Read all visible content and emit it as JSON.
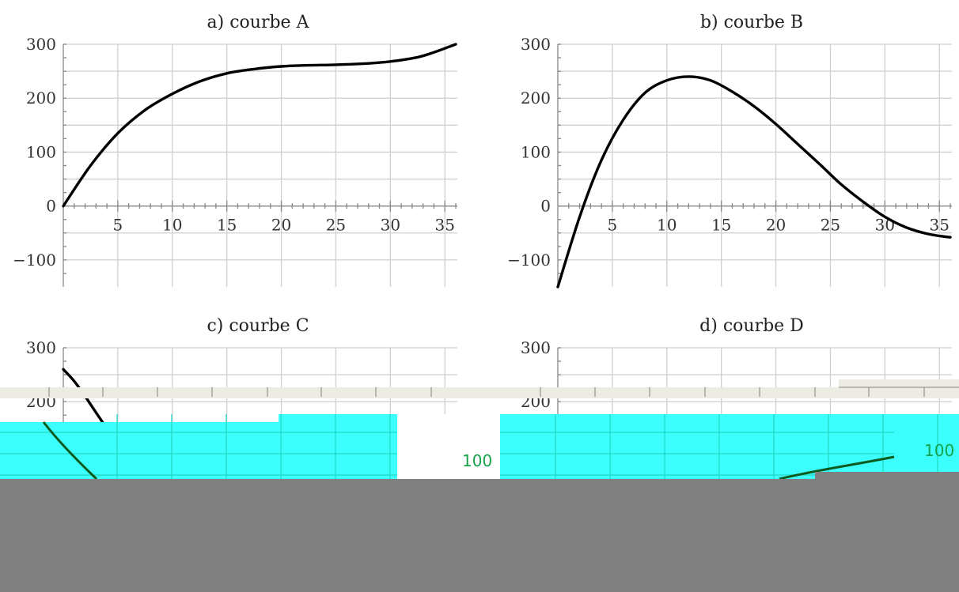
{
  "colors": {
    "curve": "#000000",
    "grid": "#cfcfcf",
    "overlay_band": "#ecece4",
    "overlay_cyan": "#3cfffd",
    "overlay_gray": "#808080",
    "overlay_green": "#0c5a1e",
    "overlay_label": "#17a34a"
  },
  "overlay": {
    "left_label": "100",
    "right_label": "100"
  },
  "chart_data": [
    {
      "type": "line",
      "title": "a) courbe A",
      "xlim": [
        0,
        36
      ],
      "ylim": [
        -150,
        300
      ],
      "xticks": [
        5,
        10,
        15,
        20,
        25,
        30,
        35
      ],
      "yticks": [
        -100,
        0,
        100,
        200,
        300
      ],
      "series": [
        {
          "x": [
            0,
            2.5,
            5,
            7.5,
            10,
            12.5,
            15,
            17.5,
            20,
            22.5,
            25,
            27.5,
            30,
            32.5,
            34,
            36
          ],
          "y": [
            0,
            75,
            135,
            178,
            208,
            231,
            246,
            254,
            259,
            261,
            262,
            264,
            268,
            276,
            285,
            300
          ]
        }
      ]
    },
    {
      "type": "line",
      "title": "b) courbe B",
      "xlim": [
        0,
        36
      ],
      "ylim": [
        -150,
        300
      ],
      "xticks": [
        5,
        10,
        15,
        20,
        25,
        30,
        35
      ],
      "yticks": [
        -100,
        0,
        100,
        200,
        300
      ],
      "series": [
        {
          "x": [
            0,
            2,
            4,
            6,
            8,
            10,
            12,
            14,
            16,
            18,
            20,
            22,
            24,
            26,
            28,
            30,
            32,
            34,
            36
          ],
          "y": [
            -150,
            -20,
            85,
            160,
            210,
            233,
            240,
            233,
            212,
            185,
            152,
            115,
            78,
            40,
            8,
            -20,
            -40,
            -52,
            -58
          ]
        }
      ]
    },
    {
      "type": "line",
      "title": "c) courbe C",
      "xlim": [
        0,
        36
      ],
      "ylim": [
        -150,
        300
      ],
      "yticks": [
        200,
        300
      ],
      "series": [
        {
          "x": [
            0,
            1,
            2,
            3,
            4
          ],
          "y": [
            260,
            238,
            210,
            180,
            150
          ]
        }
      ]
    },
    {
      "type": "line",
      "title": "d) courbe D",
      "xlim": [
        0,
        36
      ],
      "ylim": [
        -150,
        300
      ],
      "yticks": [
        200,
        300
      ],
      "series": []
    }
  ]
}
